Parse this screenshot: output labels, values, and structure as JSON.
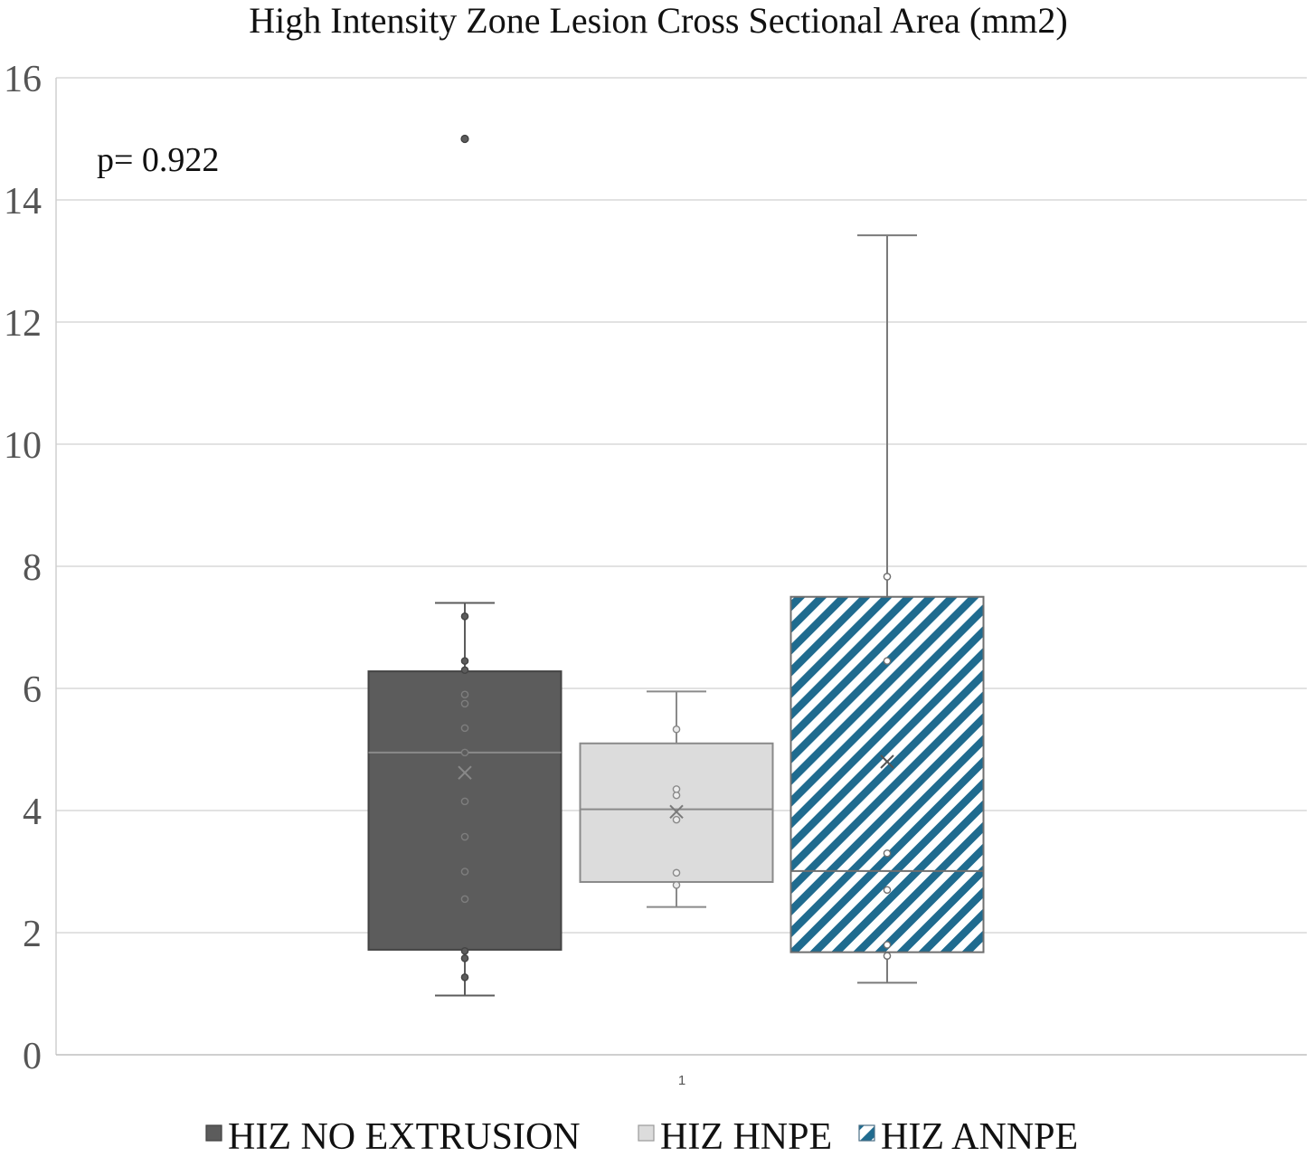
{
  "chart_data": {
    "type": "box",
    "title": "High Intensity Zone Lesion Cross Sectional Area (mm2)",
    "annotation": "p= 0.922",
    "xlabel": "",
    "ylabel": "",
    "categories": [
      "1"
    ],
    "ylim": [
      0,
      16
    ],
    "yticks": [
      0,
      2,
      4,
      6,
      8,
      10,
      12,
      14,
      16
    ],
    "grid": true,
    "legend_position": "bottom",
    "series": [
      {
        "name": "HIZ NO EXTRUSION",
        "color": "#5c5c5c",
        "fill": "solid",
        "min": 0.97,
        "q1": 1.72,
        "median": 4.95,
        "q3": 6.28,
        "max": 7.4,
        "mean": 4.62,
        "points": [
          1.27,
          1.58,
          1.7,
          2.55,
          3.0,
          3.57,
          4.15,
          4.95,
          5.35,
          5.75,
          5.9,
          6.3,
          6.45,
          7.18
        ],
        "outliers": [
          15.0
        ]
      },
      {
        "name": "HIZ HNPE",
        "color": "#dcdcdc",
        "fill": "solid",
        "min": 2.42,
        "q1": 2.83,
        "median": 4.02,
        "q3": 5.1,
        "max": 5.95,
        "mean": 3.98,
        "points": [
          2.78,
          2.98,
          3.85,
          4.25,
          4.35,
          5.33
        ],
        "outliers": []
      },
      {
        "name": "HIZ ANNPE",
        "color": "#1f6b8f",
        "fill": "hatch",
        "min": 1.18,
        "q1": 1.68,
        "median": 3.01,
        "q3": 7.5,
        "max": 13.42,
        "mean": 4.8,
        "points": [
          1.62,
          1.8,
          2.7,
          3.3,
          6.45,
          7.83
        ],
        "outliers": []
      }
    ]
  }
}
